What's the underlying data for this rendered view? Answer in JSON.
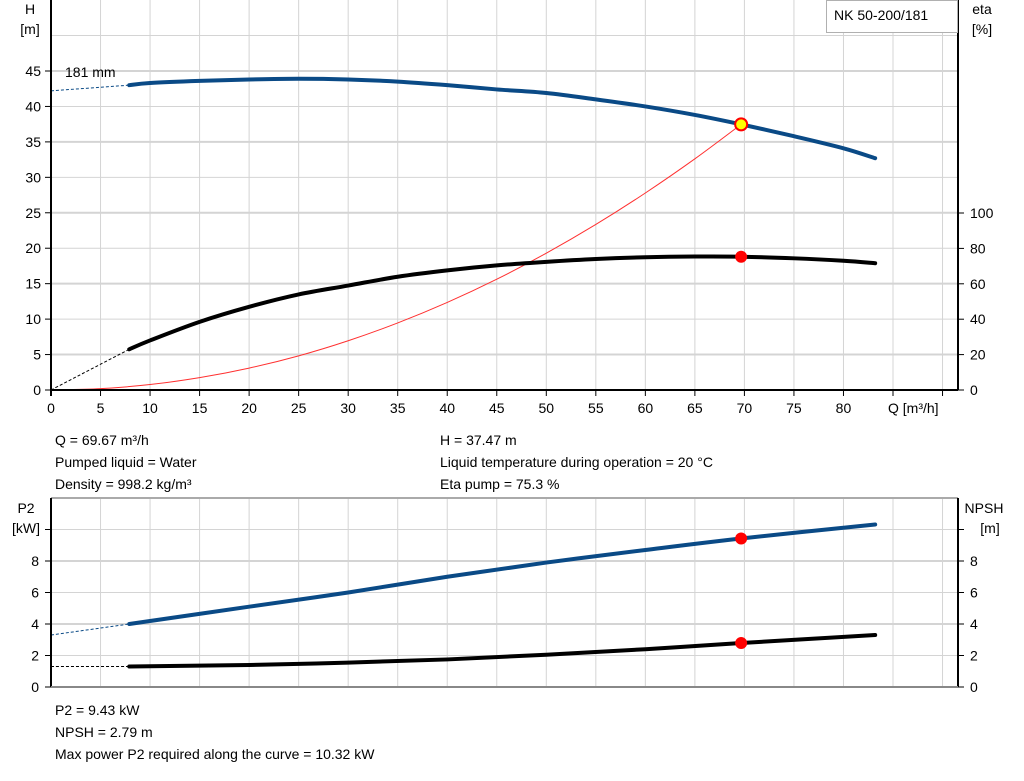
{
  "chart_data": [
    {
      "type": "line",
      "title": "NK 50-200/181",
      "xlabel": "Q [m³/h]",
      "ylabel": "H\n[m]",
      "ylabel_top": "H",
      "ylabel_unit": "[m]",
      "y2label_top": "eta",
      "y2label_unit": "[%]",
      "xlim": [
        0,
        90
      ],
      "ylim": [
        0,
        50
      ],
      "y2lim": [
        0,
        100
      ],
      "xticks": [
        0,
        5,
        10,
        15,
        20,
        25,
        30,
        35,
        40,
        45,
        50,
        55,
        60,
        65,
        70,
        75,
        80,
        85,
        90
      ],
      "xtick_labels": [
        "0",
        "5",
        "10",
        "15",
        "20",
        "25",
        "30",
        "35",
        "40",
        "45",
        "50",
        "55",
        "60",
        "65",
        "70",
        "75",
        "80"
      ],
      "yticks": [
        0,
        5,
        10,
        15,
        20,
        25,
        30,
        35,
        40,
        45
      ],
      "y2ticks": [
        0,
        20,
        40,
        60,
        80,
        100
      ],
      "grid": true,
      "curve_label": "181 mm",
      "series": [
        {
          "key": "head",
          "color": "#0a4a86",
          "x": [
            7.9,
            10,
            15,
            20,
            25,
            30,
            35,
            40,
            45,
            50,
            55,
            60,
            65,
            69.67,
            75,
            80,
            83.2
          ],
          "y": [
            43.0,
            43.3,
            43.6,
            43.8,
            43.9,
            43.8,
            43.5,
            43.0,
            42.4,
            41.9,
            41.0,
            40.0,
            38.8,
            37.47,
            35.8,
            34.1,
            32.7
          ],
          "extrapolated": {
            "x": [
              0,
              7.9
            ],
            "y": [
              42.2,
              43.0
            ]
          }
        },
        {
          "key": "eta",
          "axis": "right",
          "color": "#000000",
          "x": [
            7.9,
            10,
            15,
            20,
            25,
            30,
            35,
            40,
            45,
            50,
            55,
            60,
            65,
            69.67,
            75,
            80,
            83.2
          ],
          "y": [
            23,
            28,
            38.5,
            47,
            54,
            59,
            64,
            67.6,
            70.4,
            72.4,
            74,
            75,
            75.4,
            75.3,
            74.4,
            73,
            71.6
          ],
          "extrapolated": {
            "x": [
              0,
              7.9
            ],
            "y": [
              0,
              23
            ]
          }
        },
        {
          "key": "system",
          "color": "#ff3030",
          "x": [
            0,
            5,
            10,
            15,
            20,
            25,
            30,
            35,
            40,
            45,
            50,
            55,
            60,
            65,
            69.67
          ],
          "y": [
            0,
            0.19,
            0.77,
            1.74,
            3.09,
            4.82,
            6.95,
            9.46,
            12.35,
            15.63,
            19.3,
            23.35,
            27.79,
            32.61,
            37.47
          ]
        }
      ],
      "duty_point": {
        "Q": 69.67,
        "H": 37.47,
        "eta": 75.3
      }
    },
    {
      "type": "line",
      "ylabel_top": "P2",
      "ylabel_unit": "[kW]",
      "y2label_top": "NPSH",
      "y2label_unit": "[m]",
      "xlim": [
        0,
        90
      ],
      "ylim": [
        0,
        10
      ],
      "y2lim": [
        0,
        10
      ],
      "yticks": [
        0,
        2,
        4,
        6,
        8
      ],
      "y2ticks": [
        0,
        2,
        4,
        6,
        8
      ],
      "grid": true,
      "series": [
        {
          "key": "p2",
          "color": "#0a4a86",
          "x": [
            7.9,
            20,
            30,
            40,
            50,
            60,
            69.67,
            83.2
          ],
          "y": [
            4.0,
            5.1,
            6.0,
            7.0,
            7.9,
            8.7,
            9.43,
            10.32
          ],
          "extrapolated": {
            "x": [
              0,
              7.9
            ],
            "y": [
              3.3,
              4.0
            ]
          }
        },
        {
          "key": "npsh",
          "color": "#000000",
          "x": [
            7.9,
            20,
            30,
            40,
            50,
            60,
            69.67,
            83.2
          ],
          "y": [
            1.3,
            1.4,
            1.55,
            1.75,
            2.05,
            2.4,
            2.79,
            3.3
          ],
          "extrapolated": {
            "x": [
              0,
              7.9
            ],
            "y": [
              1.3,
              1.3
            ]
          }
        }
      ],
      "duty_point": {
        "Q": 69.67,
        "P2": 9.43,
        "NPSH": 2.79
      }
    }
  ],
  "info_top": {
    "q": "Q = 69.67 m³/h",
    "liquid": "Pumped liquid = Water",
    "density": "Density = 998.2 kg/m³",
    "h": "H = 37.47 m",
    "temp": "Liquid temperature during operation = 20 °C",
    "eta": "Eta pump = 75.3 %"
  },
  "info_bottom": {
    "p2": "P2 = 9.43 kW",
    "npsh": "NPSH = 2.79 m",
    "max_power": "Max power P2 required along the curve = 10.32 kW"
  },
  "colors": {
    "blue": "#0a4a86",
    "red": "#ff0000",
    "duty_fill": "#ffff00",
    "grid": "#d4d4d4"
  }
}
